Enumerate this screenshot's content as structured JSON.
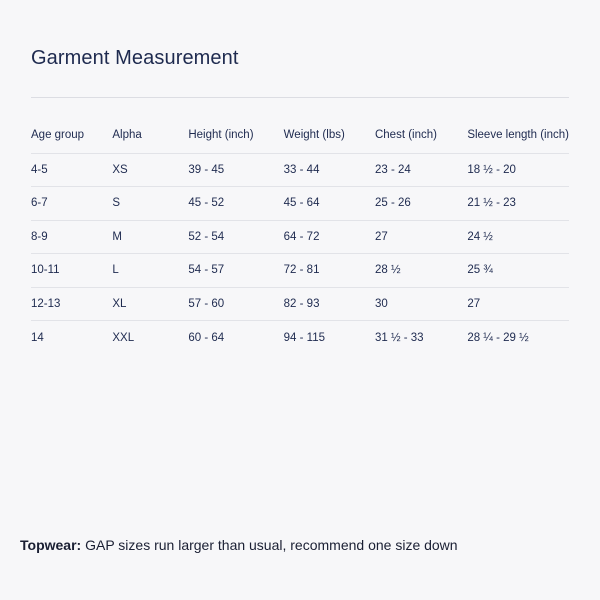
{
  "title": "Garment Measurement",
  "table": {
    "headers": [
      "Age group",
      "Alpha",
      "Height (inch)",
      "Weight (lbs)",
      "Chest (inch)",
      "Sleeve length (inch)"
    ],
    "rows": [
      [
        "4-5",
        "XS",
        "39 - 45",
        "33 - 44",
        "23 - 24",
        "18 ½ - 20"
      ],
      [
        "6-7",
        "S",
        "45 - 52",
        "45 - 64",
        "25 - 26",
        "21 ½ - 23"
      ],
      [
        "8-9",
        "M",
        "52 - 54",
        "64 - 72",
        "27",
        "24 ½"
      ],
      [
        "10-11",
        "L",
        "54 - 57",
        "72 - 81",
        "28 ½",
        "25 ¾"
      ],
      [
        "12-13",
        "XL",
        "57 - 60",
        "82 - 93",
        "30",
        "27"
      ],
      [
        "14",
        "XXL",
        "60 - 64",
        "94 - 115",
        "31 ½ - 33",
        "28 ¼ - 29 ½"
      ]
    ]
  },
  "footnote": {
    "label": "Topwear:",
    "text": " GAP sizes run larger than usual, recommend one size down"
  }
}
